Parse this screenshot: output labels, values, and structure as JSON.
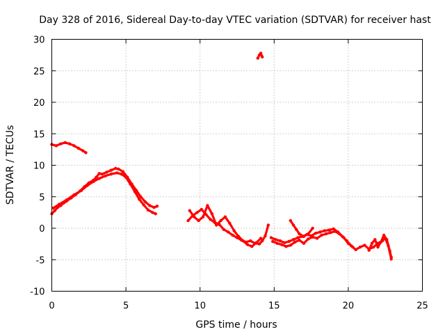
{
  "chart_data": {
    "type": "line",
    "title": "Day 328 of 2016, Sidereal Day-to-day VTEC variation (SDTVAR) for receiver hast",
    "xlabel": "GPS time / hours",
    "ylabel": "SDTVAR / TECUs",
    "xlim": [
      0,
      25
    ],
    "ylim": [
      -10,
      30
    ],
    "x_ticks": [
      0,
      5,
      10,
      15,
      20,
      25
    ],
    "y_ticks": [
      -10,
      -5,
      0,
      5,
      10,
      15,
      20,
      25,
      30
    ],
    "grid": true,
    "legend": "none",
    "color": "#ff0000",
    "series": [
      {
        "name": "trace-a",
        "x": [
          0.0,
          0.3,
          0.6,
          0.9,
          1.2,
          1.5,
          1.8,
          2.1,
          2.3
        ],
        "y": [
          13.3,
          13.1,
          13.4,
          13.6,
          13.4,
          13.1,
          12.7,
          12.3,
          12.0
        ]
      },
      {
        "name": "trace-b",
        "x": [
          0.0,
          0.2,
          0.4,
          0.6,
          0.8,
          1.0,
          1.3,
          1.6,
          1.9,
          2.2,
          2.5,
          2.8,
          3.0,
          3.2,
          3.4,
          3.7,
          4.0,
          4.3,
          4.5,
          4.8,
          5.1,
          5.4,
          5.7,
          6.0,
          6.3,
          6.6,
          6.9,
          7.1
        ],
        "y": [
          2.3,
          2.8,
          3.3,
          3.6,
          4.0,
          4.3,
          4.8,
          5.3,
          5.9,
          6.6,
          7.2,
          7.6,
          8.1,
          8.7,
          8.6,
          8.9,
          9.2,
          9.5,
          9.4,
          9.0,
          8.1,
          7.0,
          6.0,
          5.0,
          4.2,
          3.6,
          3.3,
          3.5
        ]
      },
      {
        "name": "trace-c",
        "x": [
          0.1,
          0.5,
          1.0,
          1.5,
          2.0,
          2.4,
          2.8,
          3.2,
          3.6,
          4.0,
          4.4,
          4.7,
          5.0,
          5.3,
          5.6,
          5.9,
          6.2,
          6.5,
          6.8,
          7.0
        ],
        "y": [
          3.2,
          3.8,
          4.5,
          5.3,
          6.0,
          6.8,
          7.4,
          7.9,
          8.3,
          8.6,
          8.8,
          8.6,
          8.1,
          7.0,
          5.8,
          4.6,
          3.7,
          2.9,
          2.5,
          2.3
        ]
      },
      {
        "name": "trace-d",
        "x": [
          13.9,
          14.0,
          14.1,
          14.2
        ],
        "y": [
          27.0,
          27.5,
          27.8,
          27.2
        ]
      },
      {
        "name": "trace-e",
        "x": [
          9.2,
          9.5,
          9.8,
          10.1,
          10.4,
          10.7,
          11.0,
          11.3,
          11.6,
          11.9,
          12.2,
          12.5,
          12.8,
          13.1,
          13.4,
          13.7,
          14.0,
          14.2,
          14.4,
          14.6
        ],
        "y": [
          1.2,
          2.0,
          2.5,
          3.0,
          2.2,
          1.4,
          0.9,
          0.6,
          -0.2,
          -0.6,
          -1.1,
          -1.5,
          -1.9,
          -2.2,
          -2.0,
          -2.4,
          -2.5,
          -2.0,
          -1.2,
          0.5
        ]
      },
      {
        "name": "trace-f",
        "x": [
          9.3,
          9.6,
          9.9,
          10.2,
          10.5,
          10.8,
          11.1,
          11.4,
          11.7,
          12.0,
          12.3,
          12.6,
          12.9,
          13.2,
          13.5,
          13.8,
          14.1
        ],
        "y": [
          2.8,
          1.8,
          1.2,
          1.8,
          3.6,
          2.3,
          0.5,
          1.2,
          1.8,
          0.8,
          -0.4,
          -1.3,
          -2.0,
          -2.6,
          -2.9,
          -2.3,
          -1.6
        ]
      },
      {
        "name": "trace-g",
        "x": [
          14.8,
          15.1,
          15.4,
          15.7,
          16.0,
          16.3,
          16.6,
          16.9,
          17.2,
          17.5,
          17.8,
          18.1,
          18.4,
          18.7,
          19.0,
          19.3,
          19.6,
          19.9,
          20.2,
          20.5,
          20.8,
          21.1,
          21.4,
          21.7,
          22.0,
          22.3,
          22.5,
          22.7,
          22.9
        ],
        "y": [
          -1.5,
          -1.8,
          -2.0,
          -2.3,
          -2.1,
          -1.8,
          -1.5,
          -1.3,
          -1.0,
          -1.2,
          -0.8,
          -0.6,
          -0.4,
          -0.3,
          -0.1,
          -0.6,
          -1.3,
          -2.0,
          -2.8,
          -3.4,
          -3.0,
          -2.7,
          -3.3,
          -3.0,
          -2.4,
          -2.0,
          -1.6,
          -2.8,
          -4.9
        ]
      },
      {
        "name": "trace-h",
        "x": [
          14.9,
          15.2,
          15.5,
          15.8,
          16.1,
          16.4,
          16.7,
          17.0,
          17.3,
          17.6,
          17.9,
          18.2,
          18.5,
          18.8,
          19.1,
          19.4,
          19.7,
          20.0,
          20.3
        ],
        "y": [
          -2.1,
          -2.4,
          -2.6,
          -2.9,
          -2.7,
          -2.2,
          -1.9,
          -2.4,
          -1.7,
          -1.4,
          -1.6,
          -1.1,
          -0.9,
          -0.7,
          -0.5,
          -0.9,
          -1.5,
          -2.4,
          -3.0
        ]
      },
      {
        "name": "trace-i",
        "x": [
          16.1,
          16.3,
          16.5,
          16.7,
          17.0,
          17.3,
          17.6
        ],
        "y": [
          1.2,
          0.5,
          -0.2,
          -0.9,
          -1.3,
          -0.9,
          0.0
        ]
      },
      {
        "name": "trace-j",
        "x": [
          21.4,
          21.6,
          21.8,
          22.0,
          22.2,
          22.4,
          22.6,
          22.8,
          22.9
        ],
        "y": [
          -3.5,
          -2.4,
          -1.8,
          -3.0,
          -2.2,
          -1.1,
          -1.8,
          -3.6,
          -4.6
        ]
      }
    ]
  }
}
